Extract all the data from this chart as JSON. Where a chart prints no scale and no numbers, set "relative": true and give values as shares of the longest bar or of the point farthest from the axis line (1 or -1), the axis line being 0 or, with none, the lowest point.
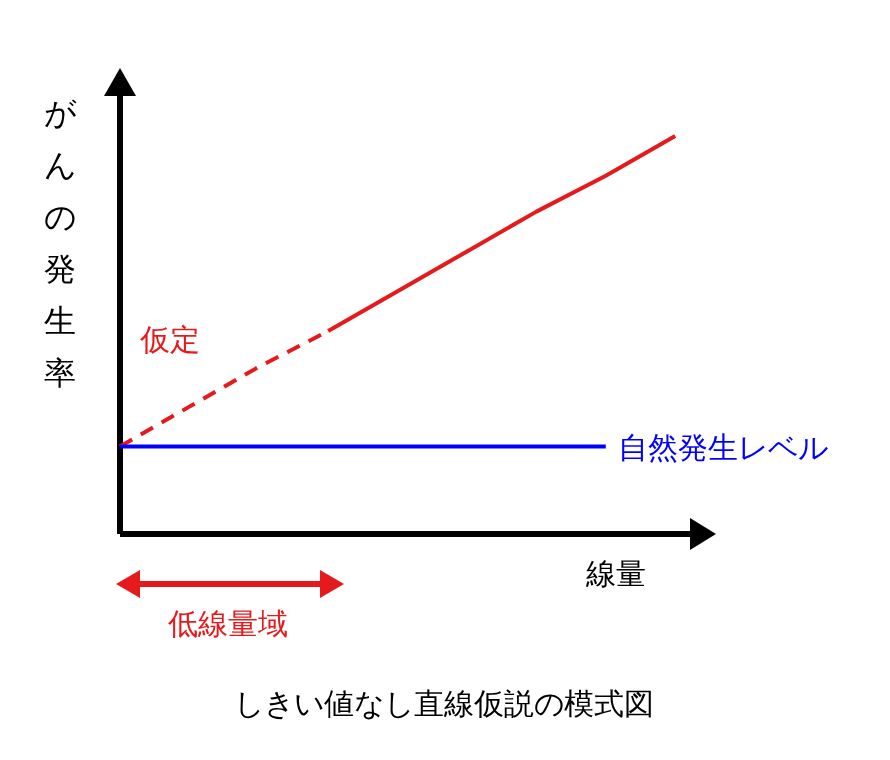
{
  "chart_data": {
    "type": "line",
    "title": "しきい値なし直線仮説の模式図",
    "xlabel": "線量",
    "ylabel": "がんの発生率",
    "relative": true,
    "categories": [
      null,
      null,
      null,
      null,
      null,
      null,
      null,
      null,
      null
    ],
    "series": [
      {
        "name": "仮定",
        "color": "#e41a1c",
        "line_style": "dashed",
        "values": [
          0.22,
          0.32,
          0.42,
          0.51,
          null,
          null,
          null,
          null,
          null
        ]
      },
      {
        "color": "#e41a1c",
        "line_style": "solid",
        "values": [
          null,
          null,
          null,
          0.51,
          0.61,
          0.71,
          0.81,
          0.9,
          1
        ]
      },
      {
        "name": "自然発生レベル",
        "color": "#0000ff",
        "line_style": "solid",
        "values": [
          0.22,
          0.22,
          0.22,
          0.22,
          0.22,
          0.22,
          0.22,
          0.22,
          null
        ]
      }
    ],
    "annotations": [
      "低線量域"
    ]
  }
}
